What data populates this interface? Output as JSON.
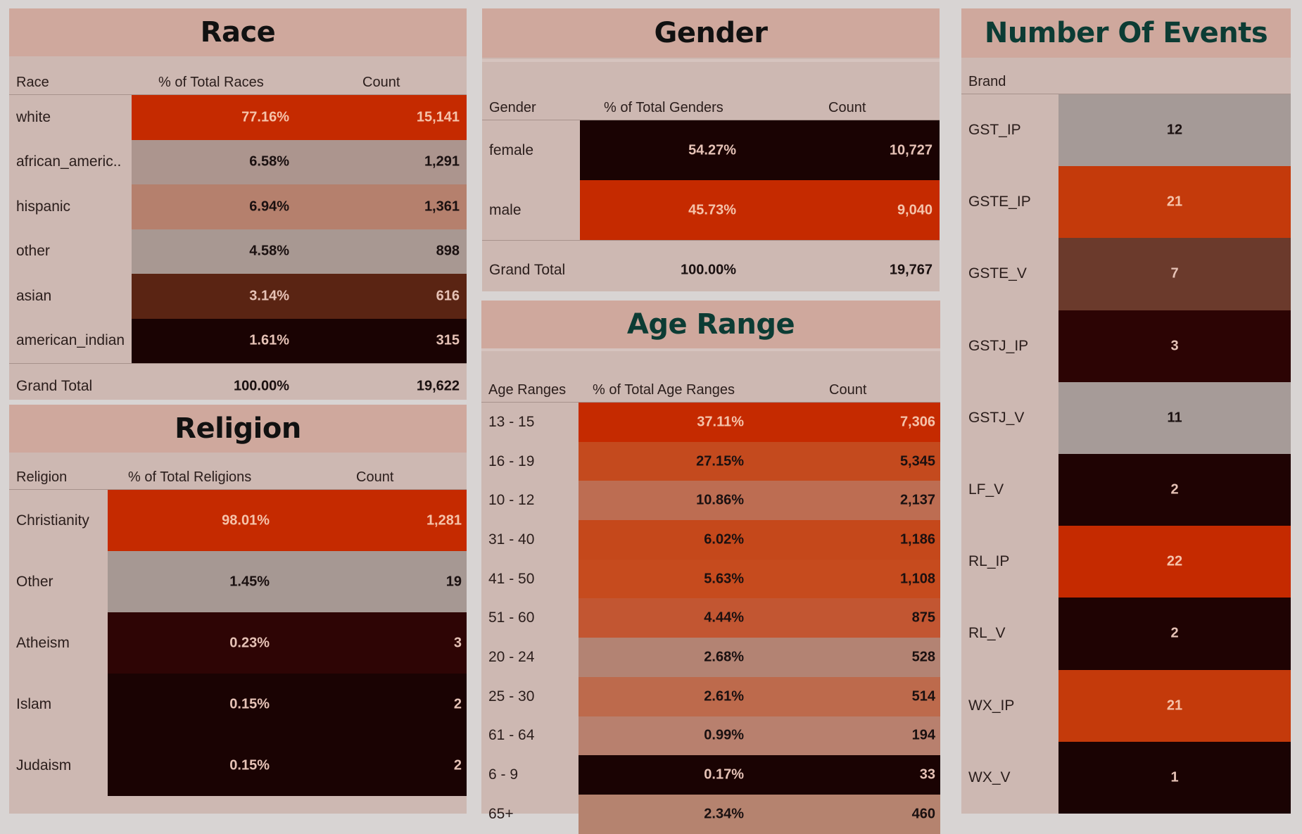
{
  "race": {
    "title": "Race",
    "headers": {
      "label": "Race",
      "pct": "% of Total Races",
      "count": "Count"
    },
    "rows": [
      {
        "label": "white",
        "pct": "77.16%",
        "count": "15,141",
        "color": "#c52a00",
        "text": "#f5c3aa"
      },
      {
        "label": "african_americ..",
        "pct": "6.58%",
        "count": "1,291",
        "color": "#ac958e",
        "text": "#1a1010"
      },
      {
        "label": "hispanic",
        "pct": "6.94%",
        "count": "1,361",
        "color": "#b5806d",
        "text": "#1a1010"
      },
      {
        "label": "other",
        "pct": "4.58%",
        "count": "898",
        "color": "#a89892",
        "text": "#1a1010"
      },
      {
        "label": "asian",
        "pct": "3.14%",
        "count": "616",
        "color": "#5a2413",
        "text": "#e6c2b6"
      },
      {
        "label": "american_indian",
        "pct": "1.61%",
        "count": "315",
        "color": "#1a0303",
        "text": "#e6c2b6"
      }
    ],
    "total": {
      "label": "Grand Total",
      "pct": "100.00%",
      "count": "19,622"
    }
  },
  "religion": {
    "title": "Religion",
    "headers": {
      "label": "Religion",
      "pct": "% of Total Religions",
      "count": "Count"
    },
    "rows": [
      {
        "label": "Christianity",
        "pct": "98.01%",
        "count": "1,281",
        "color": "#c52a00",
        "text": "#f5c3aa"
      },
      {
        "label": "Other",
        "pct": "1.45%",
        "count": "19",
        "color": "#a69893",
        "text": "#1a1010"
      },
      {
        "label": "Atheism",
        "pct": "0.23%",
        "count": "3",
        "color": "#2e0505",
        "text": "#e6c2b6"
      },
      {
        "label": "Islam",
        "pct": "0.15%",
        "count": "2",
        "color": "#1a0303",
        "text": "#e6c2b6"
      },
      {
        "label": "Judaism",
        "pct": "0.15%",
        "count": "2",
        "color": "#1a0303",
        "text": "#e6c2b6"
      }
    ]
  },
  "gender": {
    "title": "Gender",
    "headers": {
      "label": "Gender",
      "pct": "% of Total Genders",
      "count": "Count"
    },
    "rows": [
      {
        "label": "female",
        "pct": "54.27%",
        "count": "10,727",
        "color": "#1a0303",
        "text": "#e6c2b6"
      },
      {
        "label": "male",
        "pct": "45.73%",
        "count": "9,040",
        "color": "#c52a00",
        "text": "#f5c3aa"
      }
    ],
    "total": {
      "label": "Grand Total",
      "pct": "100.00%",
      "count": "19,767"
    }
  },
  "age": {
    "title": "Age Range",
    "headers": {
      "label": "Age Ranges",
      "pct": "% of Total Age Ranges",
      "count": "Count"
    },
    "rows": [
      {
        "label": "13 - 15",
        "pct": "37.11%",
        "count": "7,306",
        "color": "#c52a00",
        "text": "#f5c3aa"
      },
      {
        "label": "16 - 19",
        "pct": "27.15%",
        "count": "5,345",
        "color": "#c44a1e",
        "text": "#1a1010"
      },
      {
        "label": "10 - 12",
        "pct": "10.86%",
        "count": "2,137",
        "color": "#bd6d52",
        "text": "#1a1010"
      },
      {
        "label": "31 - 40",
        "pct": "6.02%",
        "count": "1,186",
        "color": "#c5481b",
        "text": "#1a1010"
      },
      {
        "label": "41 - 50",
        "pct": "5.63%",
        "count": "1,108",
        "color": "#c64b1e",
        "text": "#1a1010"
      },
      {
        "label": "51 - 60",
        "pct": "4.44%",
        "count": "875",
        "color": "#c25632",
        "text": "#1a1010"
      },
      {
        "label": "20 - 24",
        "pct": "2.68%",
        "count": "528",
        "color": "#b38373",
        "text": "#1a1010"
      },
      {
        "label": "25 - 30",
        "pct": "2.61%",
        "count": "514",
        "color": "#bd6a4c",
        "text": "#1a1010"
      },
      {
        "label": "61 - 64",
        "pct": "0.99%",
        "count": "194",
        "color": "#b8806e",
        "text": "#1a1010"
      },
      {
        "label": "6 - 9",
        "pct": "0.17%",
        "count": "33",
        "color": "#1a0303",
        "text": "#e6c2b6"
      },
      {
        "label": "65+",
        "pct": "2.34%",
        "count": "460",
        "color": "#b5836f",
        "text": "#1a1010"
      }
    ]
  },
  "events": {
    "title": "Number Of Events",
    "headers": {
      "label": "Brand"
    },
    "rows": [
      {
        "label": "GST_IP",
        "count": "12",
        "color": "#a59a97",
        "text": "#1a1010"
      },
      {
        "label": "GSTE_IP",
        "count": "21",
        "color": "#c43a0b",
        "text": "#f5c3aa"
      },
      {
        "label": "GSTE_V",
        "count": "7",
        "color": "#6b3a2c",
        "text": "#e6c2b6"
      },
      {
        "label": "GSTJ_IP",
        "count": "3",
        "color": "#2c0404",
        "text": "#e6c2b6"
      },
      {
        "label": "GSTJ_V",
        "count": "11",
        "color": "#a69b98",
        "text": "#1a1010"
      },
      {
        "label": "LF_V",
        "count": "2",
        "color": "#1f0303",
        "text": "#e6c2b6"
      },
      {
        "label": "RL_IP",
        "count": "22",
        "color": "#c52a00",
        "text": "#f5c3aa"
      },
      {
        "label": "RL_V",
        "count": "2",
        "color": "#1f0303",
        "text": "#e6c2b6"
      },
      {
        "label": "WX_IP",
        "count": "21",
        "color": "#c43a0b",
        "text": "#f5c3aa"
      },
      {
        "label": "WX_V",
        "count": "1",
        "color": "#1a0303",
        "text": "#e6c2b6"
      }
    ]
  }
}
